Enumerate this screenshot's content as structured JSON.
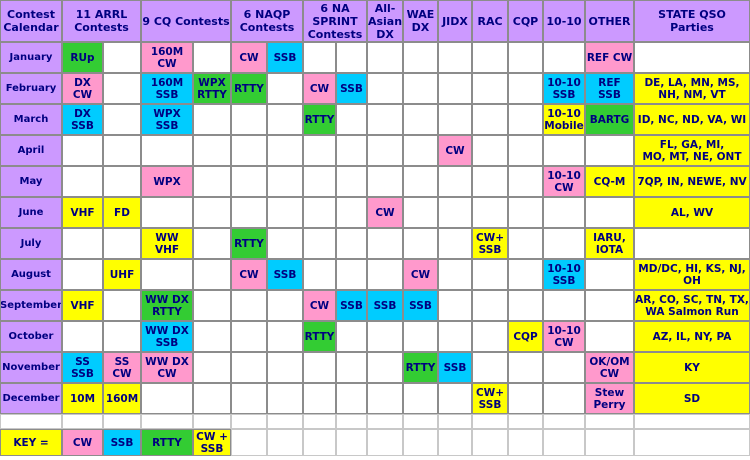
{
  "colors": {
    "header": "#cc99ff",
    "CW": "#ff99cc",
    "SSB": "#00ccff",
    "RTTY": "#33cc33",
    "OTHER": "#ffff00",
    "blank": "#ffffff",
    "text": "#000080"
  },
  "headers": [
    {
      "label": "Contest\nCalendar",
      "span": 1
    },
    {
      "label": "11 ARRL\nContests",
      "span": 2
    },
    {
      "label": "9 CQ Contests",
      "span": 2
    },
    {
      "label": "6 NAQP\nContests",
      "span": 2
    },
    {
      "label": "6 NA\nSPRINT\nContests",
      "span": 2
    },
    {
      "label": "All-\nAsian\nDX",
      "span": 1
    },
    {
      "label": "WAE\nDX",
      "span": 1
    },
    {
      "label": "JIDX",
      "span": 1
    },
    {
      "label": "RAC",
      "span": 1
    },
    {
      "label": "CQP",
      "span": 1
    },
    {
      "label": "10-10",
      "span": 1
    },
    {
      "label": "OTHER",
      "span": 1
    },
    {
      "label": "STATE QSO Parties",
      "span": 1
    }
  ],
  "months": [
    {
      "name": "January",
      "cells": [
        {
          "c": 1,
          "text": "RUp",
          "color": "RTTY"
        },
        {
          "c": 3,
          "text": "160M\nCW",
          "color": "CW"
        },
        {
          "c": 5,
          "text": "CW",
          "color": "CW"
        },
        {
          "c": 6,
          "text": "SSB",
          "color": "SSB"
        },
        {
          "c": 15,
          "text": "REF CW",
          "color": "CW"
        }
      ]
    },
    {
      "name": "February",
      "cells": [
        {
          "c": 1,
          "text": "DX\nCW",
          "color": "CW"
        },
        {
          "c": 3,
          "text": "160M\nSSB",
          "color": "SSB"
        },
        {
          "c": 4,
          "text": "WPX\nRTTY",
          "color": "RTTY"
        },
        {
          "c": 5,
          "text": "RTTY",
          "color": "RTTY"
        },
        {
          "c": 7,
          "text": "CW",
          "color": "CW"
        },
        {
          "c": 8,
          "text": "SSB",
          "color": "SSB"
        },
        {
          "c": 14,
          "text": "10-10\nSSB",
          "color": "SSB"
        },
        {
          "c": 15,
          "text": "REF\nSSB",
          "color": "SSB"
        },
        {
          "c": 16,
          "text": "DE, LA, MN, MS,\nNH, NM, VT",
          "color": "OTHER"
        }
      ]
    },
    {
      "name": "March",
      "cells": [
        {
          "c": 1,
          "text": "DX\nSSB",
          "color": "SSB"
        },
        {
          "c": 3,
          "text": "WPX\nSSB",
          "color": "SSB"
        },
        {
          "c": 7,
          "text": "RTTY",
          "color": "RTTY"
        },
        {
          "c": 14,
          "text": "10-10\nMobile",
          "color": "OTHER"
        },
        {
          "c": 15,
          "text": "BARTG",
          "color": "RTTY"
        },
        {
          "c": 16,
          "text": "ID, NC, ND, VA, WI",
          "color": "OTHER"
        }
      ]
    },
    {
      "name": "April",
      "cells": [
        {
          "c": 11,
          "text": "CW",
          "color": "CW"
        },
        {
          "c": 16,
          "text": "FL, GA, MI,\nMO, MT, NE, ONT",
          "color": "OTHER"
        }
      ]
    },
    {
      "name": "May",
      "cells": [
        {
          "c": 3,
          "text": "WPX",
          "color": "CW"
        },
        {
          "c": 14,
          "text": "10-10\nCW",
          "color": "CW"
        },
        {
          "c": 15,
          "text": "CQ-M",
          "color": "OTHER"
        },
        {
          "c": 16,
          "text": "7QP, IN, NEWE, NV",
          "color": "OTHER"
        }
      ]
    },
    {
      "name": "June",
      "cells": [
        {
          "c": 1,
          "text": "VHF",
          "color": "OTHER"
        },
        {
          "c": 2,
          "text": "FD",
          "color": "OTHER"
        },
        {
          "c": 9,
          "text": "CW",
          "color": "CW"
        },
        {
          "c": 16,
          "text": "AL, WV",
          "color": "OTHER"
        }
      ]
    },
    {
      "name": "July",
      "cells": [
        {
          "c": 3,
          "text": "WW\nVHF",
          "color": "OTHER"
        },
        {
          "c": 5,
          "text": "RTTY",
          "color": "RTTY"
        },
        {
          "c": 12,
          "text": "CW+\nSSB",
          "color": "OTHER"
        },
        {
          "c": 15,
          "text": "IARU,\nIOTA",
          "color": "OTHER"
        }
      ]
    },
    {
      "name": "August",
      "cells": [
        {
          "c": 2,
          "text": "UHF",
          "color": "OTHER"
        },
        {
          "c": 5,
          "text": "CW",
          "color": "CW"
        },
        {
          "c": 6,
          "text": "SSB",
          "color": "SSB"
        },
        {
          "c": 10,
          "text": "CW",
          "color": "CW"
        },
        {
          "c": 14,
          "text": "10-10\nSSB",
          "color": "SSB"
        },
        {
          "c": 16,
          "text": "MD/DC, HI, KS, NJ,\nOH",
          "color": "OTHER"
        }
      ]
    },
    {
      "name": "September",
      "cells": [
        {
          "c": 1,
          "text": "VHF",
          "color": "OTHER"
        },
        {
          "c": 3,
          "text": "WW DX\nRTTY",
          "color": "RTTY"
        },
        {
          "c": 7,
          "text": "CW",
          "color": "CW"
        },
        {
          "c": 8,
          "text": "SSB",
          "color": "SSB"
        },
        {
          "c": 9,
          "text": "SSB",
          "color": "SSB"
        },
        {
          "c": 10,
          "text": "SSB",
          "color": "SSB"
        },
        {
          "c": 16,
          "text": "AR, CO, SC, TN, TX,\nWA Salmon Run",
          "color": "OTHER"
        }
      ]
    },
    {
      "name": "October",
      "cells": [
        {
          "c": 3,
          "text": "WW DX\nSSB",
          "color": "SSB"
        },
        {
          "c": 7,
          "text": "RTTY",
          "color": "RTTY"
        },
        {
          "c": 13,
          "text": "CQP",
          "color": "OTHER"
        },
        {
          "c": 14,
          "text": "10-10\nCW",
          "color": "CW"
        },
        {
          "c": 16,
          "text": "AZ, IL, NY, PA",
          "color": "OTHER"
        }
      ]
    },
    {
      "name": "November",
      "cells": [
        {
          "c": 1,
          "text": "SS\nSSB",
          "color": "SSB"
        },
        {
          "c": 2,
          "text": "SS\nCW",
          "color": "CW"
        },
        {
          "c": 3,
          "text": "WW DX\nCW",
          "color": "CW"
        },
        {
          "c": 10,
          "text": "RTTY",
          "color": "RTTY"
        },
        {
          "c": 11,
          "text": "SSB",
          "color": "SSB"
        },
        {
          "c": 15,
          "text": "OK/OM\nCW",
          "color": "CW"
        },
        {
          "c": 16,
          "text": "KY",
          "color": "OTHER"
        }
      ]
    },
    {
      "name": "December",
      "cells": [
        {
          "c": 1,
          "text": "10M",
          "color": "OTHER"
        },
        {
          "c": 2,
          "text": "160M",
          "color": "OTHER"
        },
        {
          "c": 12,
          "text": "CW+\nSSB",
          "color": "OTHER"
        },
        {
          "c": 15,
          "text": "Stew\nPerry",
          "color": "CW"
        },
        {
          "c": 16,
          "text": "SD",
          "color": "OTHER"
        }
      ]
    }
  ],
  "key": {
    "label": "KEY =",
    "items": [
      {
        "text": "CW",
        "color": "CW"
      },
      {
        "text": "SSB",
        "color": "SSB"
      },
      {
        "text": "RTTY",
        "color": "RTTY"
      },
      {
        "text": "CW +\nSSB",
        "color": "OTHER"
      }
    ]
  }
}
